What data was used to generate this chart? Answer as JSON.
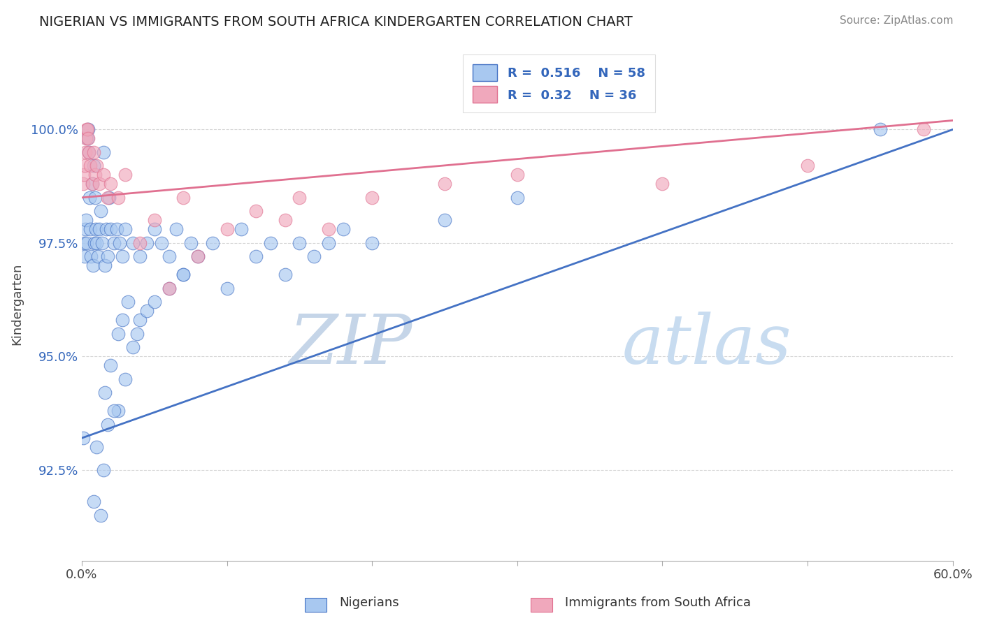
{
  "title": "NIGERIAN VS IMMIGRANTS FROM SOUTH AFRICA KINDERGARTEN CORRELATION CHART",
  "source": "Source: ZipAtlas.com",
  "ylabel": "Kindergarten",
  "ytick_labels": [
    "92.5%",
    "95.0%",
    "97.5%",
    "100.0%"
  ],
  "ytick_values": [
    92.5,
    95.0,
    97.5,
    100.0
  ],
  "xmin": 0.0,
  "xmax": 60.0,
  "ymin": 90.5,
  "ymax": 101.8,
  "legend_label1": "Nigerians",
  "legend_label2": "Immigrants from South Africa",
  "R1": 0.516,
  "N1": 58,
  "R2": 0.32,
  "N2": 36,
  "color_blue": "#A8C8F0",
  "color_pink": "#F0A8BC",
  "color_blue_dark": "#4472C4",
  "color_pink_dark": "#E07090",
  "watermark_zip_color": "#C8D8EE",
  "watermark_atlas_color": "#C8D8EE",
  "background_color": "#FFFFFF",
  "blue_x": [
    0.1,
    0.15,
    0.2,
    0.25,
    0.3,
    0.35,
    0.4,
    0.45,
    0.5,
    0.55,
    0.6,
    0.65,
    0.7,
    0.75,
    0.8,
    0.85,
    0.9,
    0.95,
    1.0,
    1.1,
    1.2,
    1.3,
    1.4,
    1.5,
    1.6,
    1.7,
    1.8,
    1.9,
    2.0,
    2.2,
    2.4,
    2.6,
    2.8,
    3.0,
    3.5,
    4.0,
    4.5,
    5.0,
    5.5,
    6.0,
    6.5,
    7.0,
    7.5,
    8.0,
    9.0,
    10.0,
    11.0,
    12.0,
    13.0,
    14.0,
    15.0,
    16.0,
    17.0,
    18.0,
    20.0,
    25.0,
    30.0,
    55.0
  ],
  "blue_y": [
    93.2,
    97.5,
    97.2,
    97.8,
    98.0,
    97.5,
    99.8,
    100.0,
    99.5,
    98.5,
    97.8,
    97.2,
    98.8,
    97.0,
    99.2,
    97.5,
    98.5,
    97.8,
    97.5,
    97.2,
    97.8,
    98.2,
    97.5,
    99.5,
    97.0,
    97.8,
    97.2,
    98.5,
    97.8,
    97.5,
    97.8,
    97.5,
    97.2,
    97.8,
    97.5,
    97.2,
    97.5,
    97.8,
    97.5,
    97.2,
    97.8,
    96.8,
    97.5,
    97.2,
    97.5,
    96.5,
    97.8,
    97.2,
    97.5,
    96.8,
    97.5,
    97.2,
    97.5,
    97.8,
    97.5,
    98.0,
    98.5,
    100.0
  ],
  "blue_y_outliers": [
    91.5,
    92.5,
    93.8,
    94.5,
    95.2,
    95.8,
    96.0,
    96.2,
    96.5,
    96.8,
    93.0,
    91.8,
    94.8,
    95.5,
    93.5,
    96.2,
    95.8,
    94.2,
    93.8,
    95.5
  ],
  "blue_x_outliers": [
    1.3,
    1.5,
    2.5,
    3.0,
    3.5,
    4.0,
    4.5,
    5.0,
    6.0,
    7.0,
    1.0,
    0.8,
    2.0,
    2.5,
    1.8,
    3.2,
    2.8,
    1.6,
    2.2,
    3.8
  ],
  "pink_x": [
    0.1,
    0.15,
    0.2,
    0.25,
    0.3,
    0.35,
    0.4,
    0.45,
    0.5,
    0.6,
    0.7,
    0.8,
    0.9,
    1.0,
    1.2,
    1.5,
    1.8,
    2.0,
    2.5,
    3.0,
    4.0,
    5.0,
    6.0,
    7.0,
    8.0,
    10.0,
    12.0,
    14.0,
    15.0,
    17.0,
    20.0,
    25.0,
    30.0,
    40.0,
    50.0,
    58.0
  ],
  "pink_y": [
    98.8,
    99.0,
    99.2,
    99.5,
    99.8,
    100.0,
    100.0,
    99.8,
    99.5,
    99.2,
    98.8,
    99.5,
    99.0,
    99.2,
    98.8,
    99.0,
    98.5,
    98.8,
    98.5,
    99.0,
    97.5,
    98.0,
    96.5,
    98.5,
    97.2,
    97.8,
    98.2,
    98.0,
    98.5,
    97.8,
    98.5,
    98.8,
    99.0,
    98.8,
    99.2,
    100.0
  ]
}
